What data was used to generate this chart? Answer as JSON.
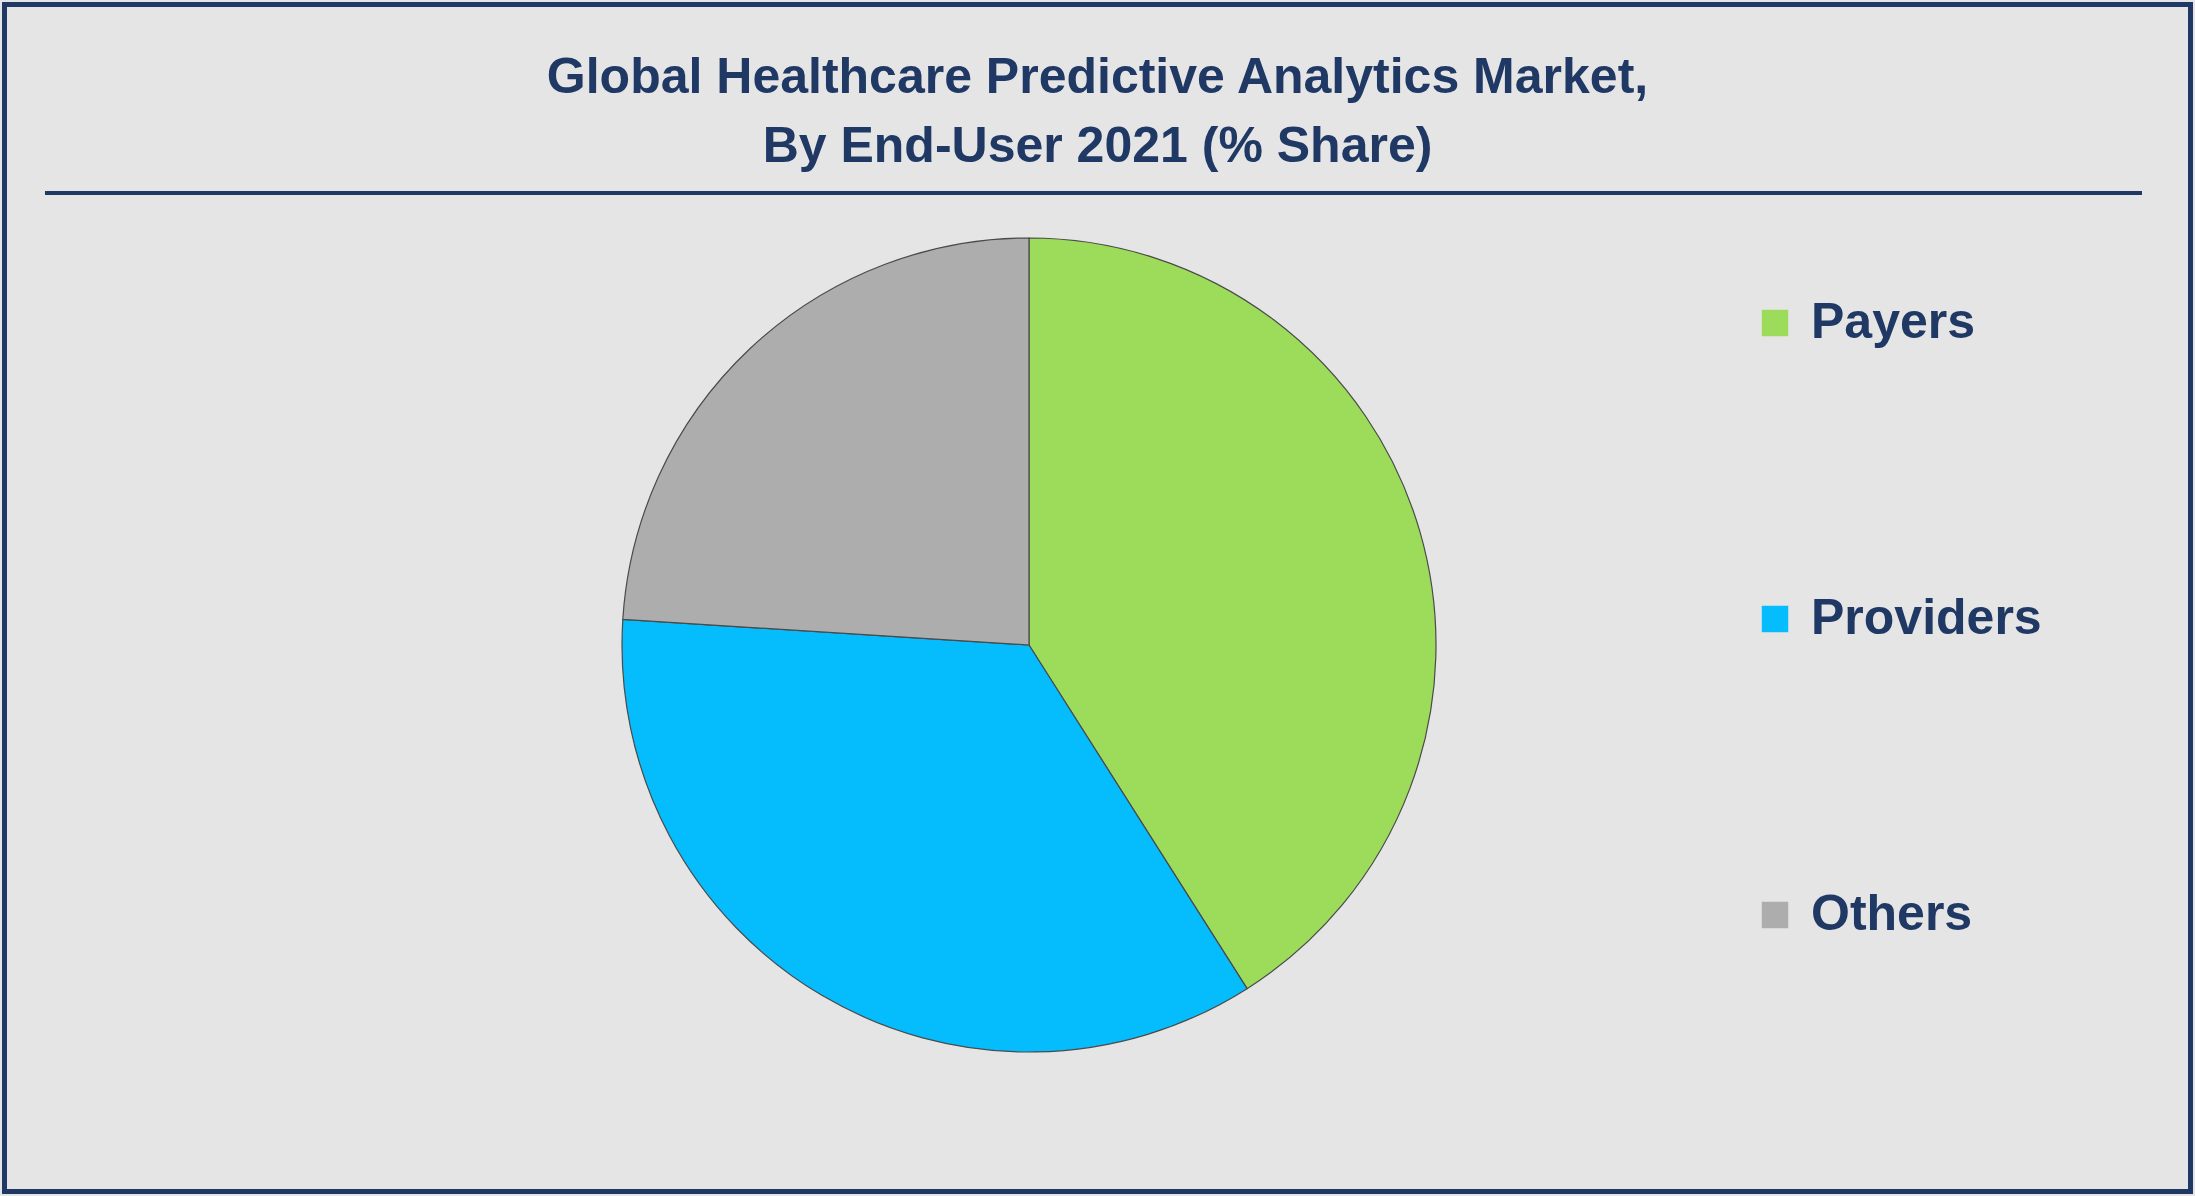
{
  "chart_data": {
    "type": "pie",
    "title": "Global Healthcare Predictive Analytics Market,\nBy End-User 2021 (% Share)",
    "categories": [
      "Payers",
      "Providers",
      "Others"
    ],
    "values": [
      41,
      35,
      24
    ],
    "colors": [
      "#9ddc5a",
      "#05bcfd",
      "#adadad"
    ],
    "legend": "right"
  }
}
